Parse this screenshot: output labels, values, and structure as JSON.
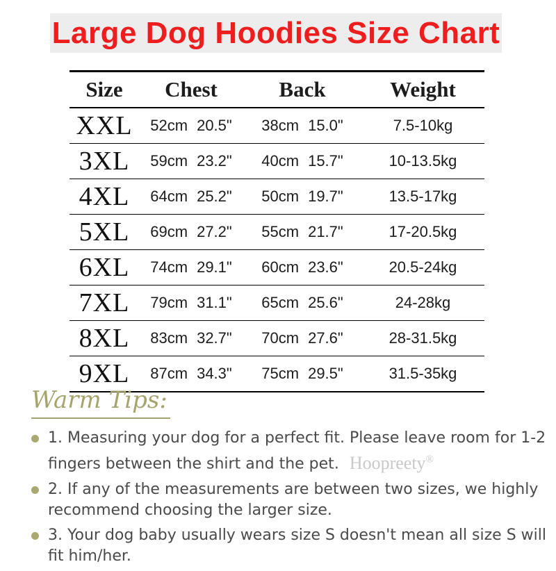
{
  "title": {
    "text": "Large Dog Hoodies Size Chart",
    "text_color": "#ee1e1e",
    "background_color": "#ededed"
  },
  "table": {
    "headers": [
      "Size",
      "Chest",
      "Back",
      "Weight"
    ],
    "rows": [
      {
        "size": "XXL",
        "chest_cm": "52cm",
        "chest_in": "20.5\"",
        "back_cm": "38cm",
        "back_in": "15.0\"",
        "weight": "7.5-10kg"
      },
      {
        "size": "3XL",
        "chest_cm": "59cm",
        "chest_in": "23.2\"",
        "back_cm": "40cm",
        "back_in": "15.7\"",
        "weight": "10-13.5kg"
      },
      {
        "size": "4XL",
        "chest_cm": "64cm",
        "chest_in": "25.2\"",
        "back_cm": "50cm",
        "back_in": "19.7\"",
        "weight": "13.5-17kg"
      },
      {
        "size": "5XL",
        "chest_cm": "69cm",
        "chest_in": "27.2\"",
        "back_cm": "55cm",
        "back_in": "21.7\"",
        "weight": "17-20.5kg"
      },
      {
        "size": "6XL",
        "chest_cm": "74cm",
        "chest_in": "29.1\"",
        "back_cm": "60cm",
        "back_in": "23.6\"",
        "weight": "20.5-24kg"
      },
      {
        "size": "7XL",
        "chest_cm": "79cm",
        "chest_in": "31.1\"",
        "back_cm": "65cm",
        "back_in": "25.6\"",
        "weight": "24-28kg"
      },
      {
        "size": "8XL",
        "chest_cm": "83cm",
        "chest_in": "32.7\"",
        "back_cm": "70cm",
        "back_in": "27.6\"",
        "weight": "28-31.5kg"
      },
      {
        "size": "9XL",
        "chest_cm": "87cm",
        "chest_in": "34.3\"",
        "back_cm": "75cm",
        "back_in": "29.5\"",
        "weight": "31.5-35kg"
      }
    ]
  },
  "tips": {
    "heading": "Warm Tips:",
    "accent_color": "#a9a871",
    "items": [
      {
        "line1": "1. Measuring your dog for a perfect fit. Please leave room for 1-2",
        "line2": "fingers between the shirt and the pet.",
        "watermark": "Hoopreety",
        "watermark_mark": "®"
      },
      {
        "line1": "2. If any of the measurements are between two sizes, we highly",
        "line2": "recommend choosing the larger size."
      },
      {
        "line1": "3. Your dog baby usually wears size S doesn't mean all size S will",
        "line2": "fit him/her."
      }
    ]
  }
}
